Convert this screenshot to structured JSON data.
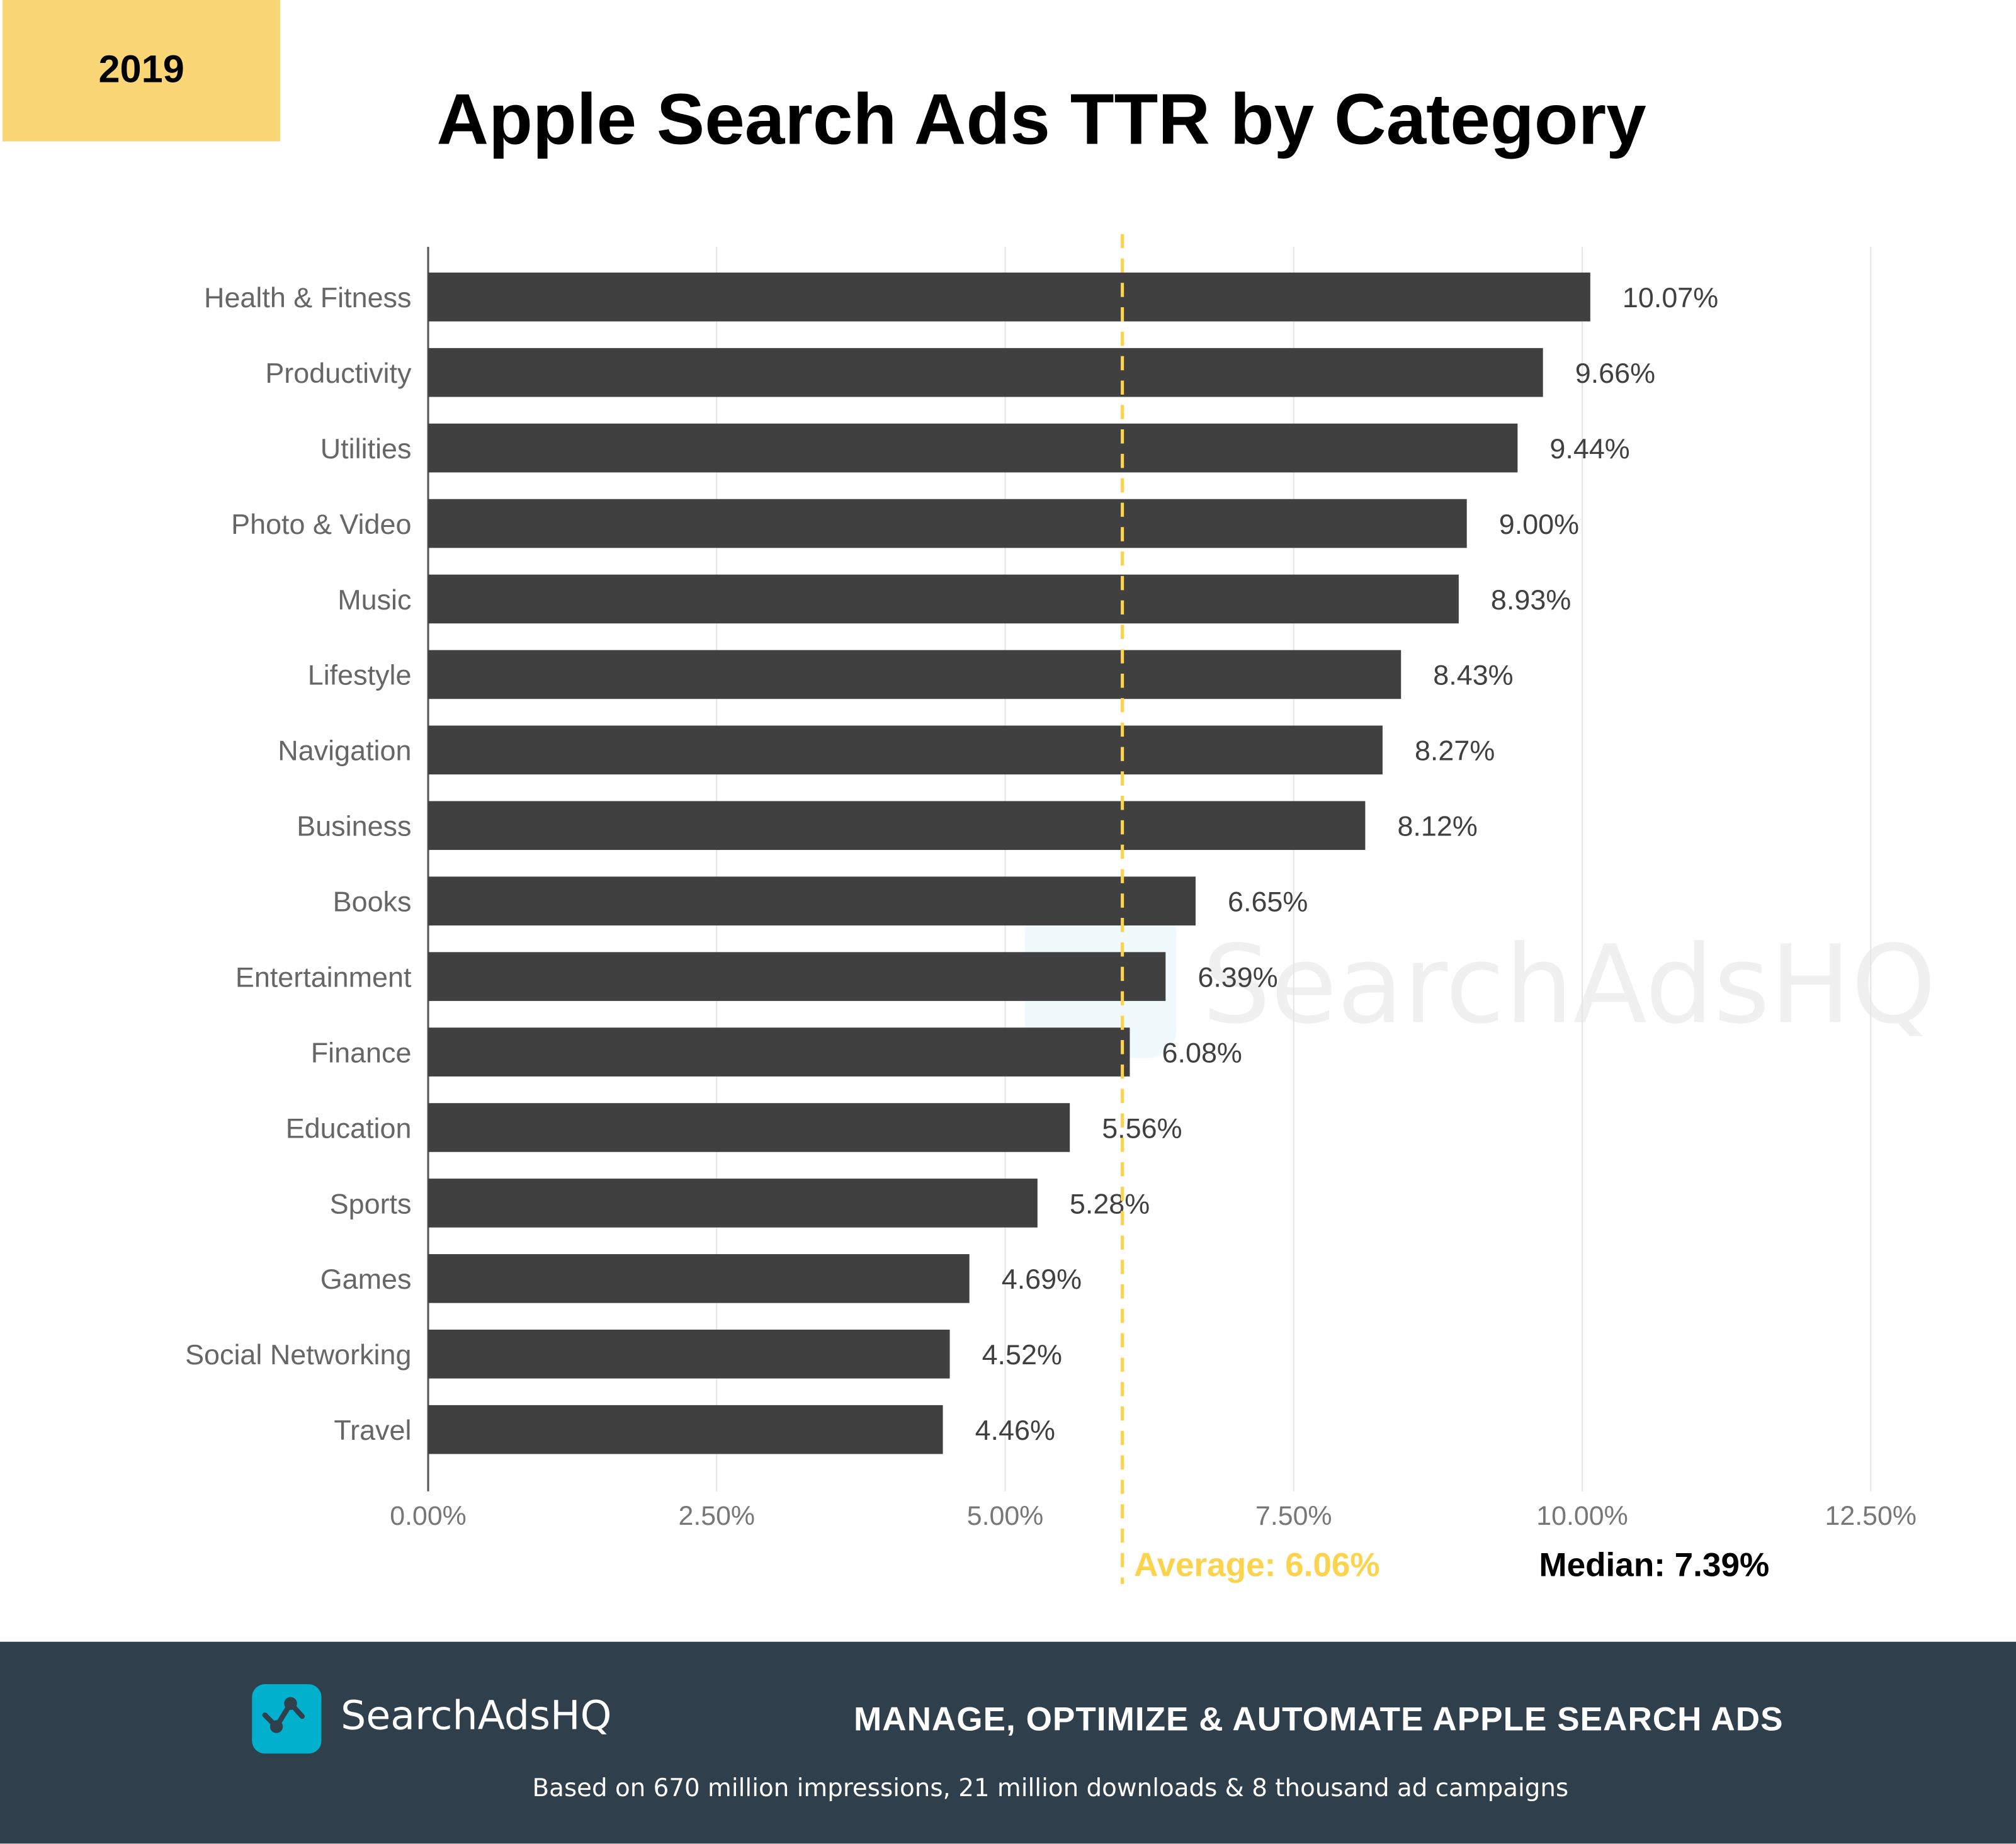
{
  "badge": {
    "year": "2019"
  },
  "colors": {
    "bar": "#404040",
    "average": "#fcd34d",
    "badge": "#fbd677",
    "footer": "#2f3f4b",
    "brand": "#00b0cc",
    "grid": "#e5e5e5"
  },
  "chart_data": {
    "type": "bar",
    "orientation": "horizontal",
    "title": "Apple Search Ads TTR by Category",
    "categories": [
      "Health & Fitness",
      "Productivity",
      "Utilities",
      "Photo & Video",
      "Music",
      "Lifestyle",
      "Navigation",
      "Business",
      "Books",
      "Entertainment",
      "Finance",
      "Education",
      "Sports",
      "Games",
      "Social Networking",
      "Travel"
    ],
    "values": [
      10.07,
      9.66,
      9.44,
      9.0,
      8.93,
      8.43,
      8.27,
      8.12,
      6.65,
      6.39,
      6.08,
      5.56,
      5.28,
      4.69,
      4.52,
      4.46
    ],
    "data_labels": [
      "10.07%",
      "9.66%",
      "9.44%",
      "9.00%",
      "8.93%",
      "8.43%",
      "8.27%",
      "8.12%",
      "6.65%",
      "6.39%",
      "6.08%",
      "5.56%",
      "5.28%",
      "4.69%",
      "4.52%",
      "4.46%"
    ],
    "xlim": [
      0,
      12.5
    ],
    "xticks": [
      0,
      2.5,
      5,
      7.5,
      10,
      12.5
    ],
    "xtick_labels": [
      "0.00%",
      "2.50%",
      "5.00%",
      "7.50%",
      "10.00%",
      "12.50%"
    ],
    "grid": true,
    "reference_lines": [
      {
        "label": "Average: 6.06%",
        "value": 6.06,
        "style": "dashed"
      }
    ],
    "annotations": {
      "average": "Average: 6.06%",
      "median": "Median: 7.39%"
    },
    "watermark": "SearchAdsHQ"
  },
  "footer": {
    "brand": "SearchAdsHQ",
    "tagline": "MANAGE, OPTIMIZE & AUTOMATE APPLE SEARCH ADS",
    "subtext": "Based on 670 million impressions, 21 million downloads & 8 thousand ad campaigns"
  }
}
